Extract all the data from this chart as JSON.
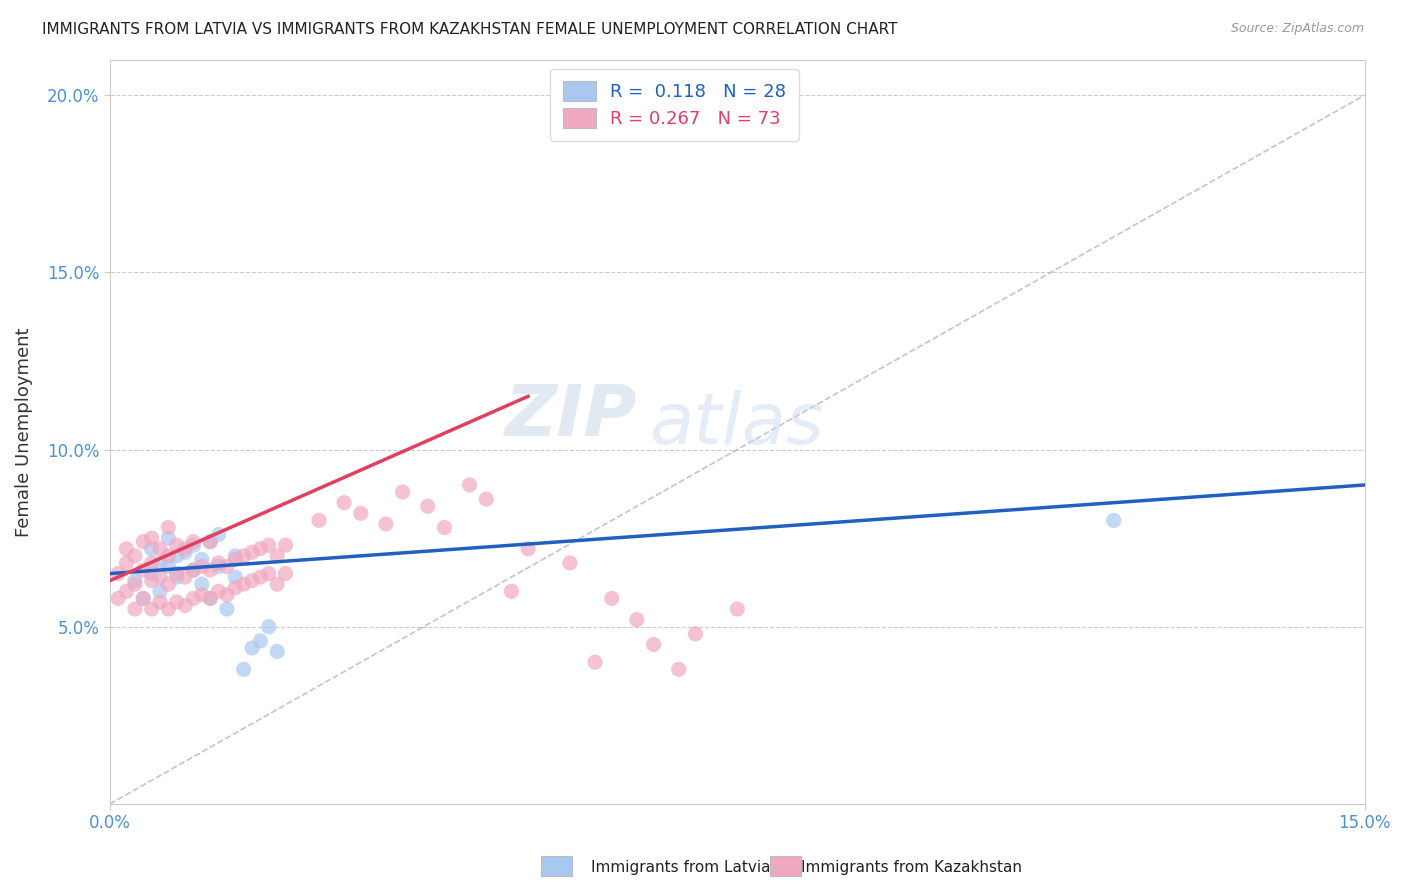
{
  "title": "IMMIGRANTS FROM LATVIA VS IMMIGRANTS FROM KAZAKHSTAN FEMALE UNEMPLOYMENT CORRELATION CHART",
  "source": "Source: ZipAtlas.com",
  "ylabel_label": "Female Unemployment",
  "x_min": 0.0,
  "x_max": 0.15,
  "y_min": 0.0,
  "y_max": 0.21,
  "x_tick_labels": [
    "0.0%",
    "15.0%"
  ],
  "y_ticks": [
    0.05,
    0.1,
    0.15,
    0.2
  ],
  "y_tick_labels": [
    "5.0%",
    "10.0%",
    "15.0%",
    "20.0%"
  ],
  "legend_R1": "R =  0.118",
  "legend_N1": "N = 28",
  "legend_R2": "R = 0.267",
  "legend_N2": "N = 73",
  "color_latvia": "#a8c8f0",
  "color_kazakhstan": "#f0a8c0",
  "trendline_latvia_color": "#2060c0",
  "trendline_kazakhstan_color": "#e04060",
  "trendline_dashed_color": "#c0b0b8",
  "watermark_zip": "ZIP",
  "watermark_atlas": "atlas",
  "background_color": "#ffffff",
  "latvia_scatter_x": [
    0.003,
    0.004,
    0.005,
    0.005,
    0.006,
    0.006,
    0.007,
    0.007,
    0.008,
    0.008,
    0.009,
    0.01,
    0.01,
    0.011,
    0.011,
    0.012,
    0.012,
    0.013,
    0.013,
    0.014,
    0.015,
    0.015,
    0.016,
    0.017,
    0.018,
    0.019,
    0.02,
    0.12
  ],
  "latvia_scatter_y": [
    0.063,
    0.058,
    0.072,
    0.065,
    0.068,
    0.06,
    0.075,
    0.067,
    0.07,
    0.064,
    0.071,
    0.066,
    0.073,
    0.069,
    0.062,
    0.074,
    0.058,
    0.067,
    0.076,
    0.055,
    0.07,
    0.064,
    0.038,
    0.044,
    0.046,
    0.05,
    0.043,
    0.08
  ],
  "kazakhstan_scatter_x": [
    0.001,
    0.001,
    0.002,
    0.002,
    0.002,
    0.003,
    0.003,
    0.003,
    0.004,
    0.004,
    0.004,
    0.005,
    0.005,
    0.005,
    0.005,
    0.006,
    0.006,
    0.006,
    0.007,
    0.007,
    0.007,
    0.007,
    0.008,
    0.008,
    0.008,
    0.009,
    0.009,
    0.009,
    0.01,
    0.01,
    0.01,
    0.011,
    0.011,
    0.012,
    0.012,
    0.012,
    0.013,
    0.013,
    0.014,
    0.014,
    0.015,
    0.015,
    0.016,
    0.016,
    0.017,
    0.017,
    0.018,
    0.018,
    0.019,
    0.019,
    0.02,
    0.02,
    0.021,
    0.021,
    0.025,
    0.028,
    0.03,
    0.033,
    0.035,
    0.038,
    0.04,
    0.043,
    0.045,
    0.048,
    0.05,
    0.055,
    0.058,
    0.06,
    0.063,
    0.065,
    0.068,
    0.07,
    0.075
  ],
  "kazakhstan_scatter_y": [
    0.058,
    0.065,
    0.06,
    0.068,
    0.072,
    0.055,
    0.062,
    0.07,
    0.058,
    0.066,
    0.074,
    0.055,
    0.063,
    0.068,
    0.075,
    0.057,
    0.064,
    0.072,
    0.055,
    0.062,
    0.07,
    0.078,
    0.057,
    0.065,
    0.073,
    0.056,
    0.064,
    0.072,
    0.058,
    0.066,
    0.074,
    0.059,
    0.067,
    0.058,
    0.066,
    0.074,
    0.06,
    0.068,
    0.059,
    0.067,
    0.061,
    0.069,
    0.062,
    0.07,
    0.063,
    0.071,
    0.064,
    0.072,
    0.065,
    0.073,
    0.062,
    0.07,
    0.065,
    0.073,
    0.08,
    0.085,
    0.082,
    0.079,
    0.088,
    0.084,
    0.078,
    0.09,
    0.086,
    0.06,
    0.072,
    0.068,
    0.04,
    0.058,
    0.052,
    0.045,
    0.038,
    0.048,
    0.055
  ],
  "latvia_trendline_x": [
    0.0,
    0.15
  ],
  "latvia_trendline_y": [
    0.065,
    0.09
  ],
  "kazakhstan_trendline_x": [
    0.0,
    0.05
  ],
  "kazakhstan_trendline_y": [
    0.063,
    0.115
  ]
}
